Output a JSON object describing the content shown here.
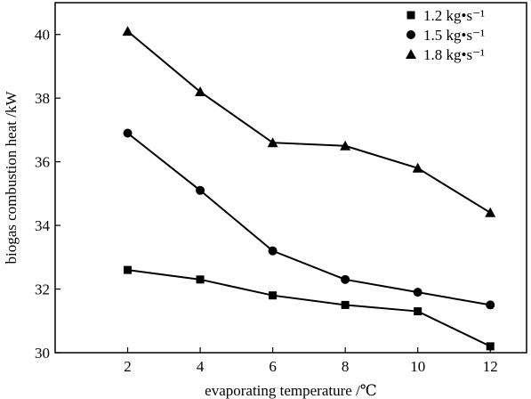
{
  "chart_data": {
    "type": "line",
    "title": "",
    "xlabel": "evaporating temperature /℃",
    "ylabel": "biogas combustion heat /kW",
    "x": [
      2,
      4,
      6,
      8,
      10,
      12
    ],
    "xlim": [
      0,
      13
    ],
    "ylim": [
      30,
      41
    ],
    "xticks": [
      2,
      4,
      6,
      8,
      10,
      12
    ],
    "yticks": [
      30,
      32,
      34,
      36,
      38,
      40
    ],
    "xtick_labels": [
      "2",
      "4",
      "6",
      "8",
      "10",
      "12"
    ],
    "ytick_labels": [
      "30",
      "32",
      "34",
      "36",
      "38",
      "40"
    ],
    "grid": false,
    "legend_position": "top-right",
    "series": [
      {
        "name": "1.2 kg•s⁻¹",
        "marker": "square",
        "color": "#000000",
        "values": [
          32.6,
          32.3,
          31.8,
          31.5,
          31.3,
          30.2
        ]
      },
      {
        "name": "1.5 kg•s⁻¹",
        "marker": "circle",
        "color": "#000000",
        "values": [
          36.9,
          35.1,
          33.2,
          32.3,
          31.9,
          31.5
        ]
      },
      {
        "name": "1.8 kg•s⁻¹",
        "marker": "triangle",
        "color": "#000000",
        "values": [
          40.1,
          38.2,
          36.6,
          36.5,
          35.8,
          34.4
        ]
      }
    ]
  }
}
